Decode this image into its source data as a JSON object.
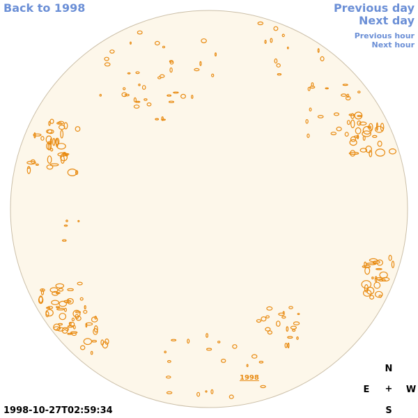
{
  "nav": {
    "back_label": "Back to 1998",
    "prev_day_label": "Previous day",
    "next_day_label": "Next day",
    "prev_hour_label": "Previous hour",
    "next_hour_label": "Next hour"
  },
  "sun": {
    "year_label": "1998",
    "timestamp": "1998-10-27T02:59:34",
    "disk_color": "#fdf7ea",
    "rim_color": "#cbbfa8",
    "feature_color": "#e88a10"
  },
  "compass": {
    "north": "N",
    "south": "S",
    "east": "E",
    "west": "W",
    "center": "+"
  },
  "colors": {
    "link": "#6b8fd6",
    "text": "#000000"
  }
}
